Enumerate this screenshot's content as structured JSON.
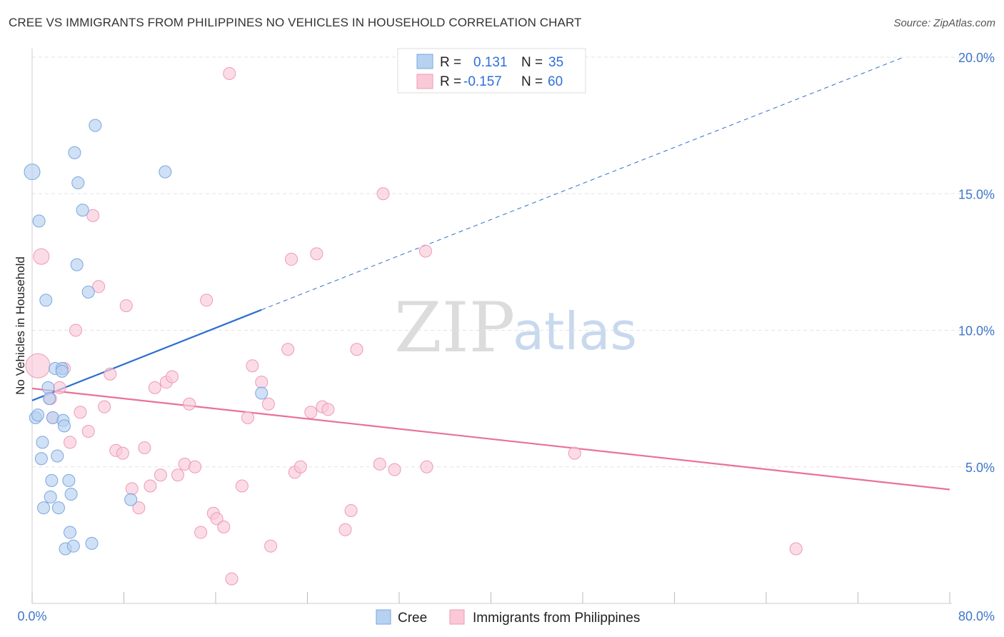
{
  "title": "CREE VS IMMIGRANTS FROM PHILIPPINES NO VEHICLES IN HOUSEHOLD CORRELATION CHART",
  "source": "Source: ZipAtlas.com",
  "watermark": {
    "part1": "ZIP",
    "part2": "atlas"
  },
  "legend": {
    "r_label": "R =",
    "n_label": "N =",
    "rows": [
      {
        "r": "0.131",
        "n": "35",
        "color": "#aecbef"
      },
      {
        "r": "-0.157",
        "n": "60",
        "color": "#f6bccd"
      }
    ]
  },
  "chart_data": {
    "type": "scatter",
    "title": "CREE VS IMMIGRANTS FROM PHILIPPINES NO VEHICLES IN HOUSEHOLD CORRELATION CHART",
    "xlabel": "",
    "ylabel": "No Vehicles in Household",
    "xlim": [
      0,
      80
    ],
    "ylim": [
      0,
      20
    ],
    "x_tick_labels": [
      "0.0%",
      "80.0%"
    ],
    "y_ticks": [
      5,
      10,
      15,
      20
    ],
    "y_tick_labels": [
      "5.0%",
      "10.0%",
      "15.0%",
      "20.0%"
    ],
    "grid": true,
    "legend_position": "top-center",
    "series": [
      {
        "name": "Cree",
        "color": "#7aa6e0",
        "fill": "#b7d1f1",
        "line_color": "#2d6fce",
        "trend": {
          "x0": 0,
          "y0": 7.43,
          "x1": 20,
          "y1": 10.75,
          "dashed_to_x": 76,
          "dashed_to_y": 20.0
        },
        "points": [
          [
            0.0,
            15.8
          ],
          [
            0.3,
            6.8
          ],
          [
            0.5,
            6.9
          ],
          [
            0.6,
            14.0
          ],
          [
            0.8,
            5.3
          ],
          [
            0.9,
            5.9
          ],
          [
            1.0,
            3.5
          ],
          [
            1.2,
            11.1
          ],
          [
            1.4,
            7.9
          ],
          [
            1.5,
            7.5
          ],
          [
            1.6,
            3.9
          ],
          [
            1.7,
            4.5
          ],
          [
            1.8,
            6.8
          ],
          [
            2.0,
            8.6
          ],
          [
            2.2,
            5.4
          ],
          [
            2.3,
            3.5
          ],
          [
            2.6,
            8.6
          ],
          [
            2.7,
            6.7
          ],
          [
            2.8,
            6.5
          ],
          [
            2.9,
            2.0
          ],
          [
            3.2,
            4.5
          ],
          [
            3.3,
            2.6
          ],
          [
            3.4,
            4.0
          ],
          [
            3.6,
            2.1
          ],
          [
            3.7,
            16.5
          ],
          [
            3.9,
            12.4
          ],
          [
            4.0,
            15.4
          ],
          [
            4.4,
            14.4
          ],
          [
            4.9,
            11.4
          ],
          [
            5.2,
            2.2
          ],
          [
            5.5,
            17.5
          ],
          [
            8.6,
            3.8
          ],
          [
            11.6,
            15.8
          ],
          [
            20.0,
            7.7
          ],
          [
            2.6,
            8.5
          ]
        ]
      },
      {
        "name": "Immigrants from Philippines",
        "color": "#ee9ab4",
        "fill": "#f9c9d8",
        "line_color": "#e8719a",
        "trend": {
          "x0": 0,
          "y0": 7.87,
          "x1": 80,
          "y1": 4.17
        },
        "points": [
          [
            0.5,
            8.7
          ],
          [
            0.8,
            12.7
          ],
          [
            1.6,
            7.5
          ],
          [
            1.8,
            6.8
          ],
          [
            2.4,
            7.9
          ],
          [
            2.8,
            8.6
          ],
          [
            3.3,
            5.9
          ],
          [
            3.8,
            10.0
          ],
          [
            4.2,
            7.0
          ],
          [
            4.9,
            6.3
          ],
          [
            5.3,
            14.2
          ],
          [
            5.8,
            11.6
          ],
          [
            6.3,
            7.2
          ],
          [
            6.8,
            8.4
          ],
          [
            7.3,
            5.6
          ],
          [
            7.9,
            5.5
          ],
          [
            8.2,
            10.9
          ],
          [
            8.7,
            4.2
          ],
          [
            9.3,
            3.5
          ],
          [
            9.8,
            5.7
          ],
          [
            10.3,
            4.3
          ],
          [
            10.7,
            7.9
          ],
          [
            11.2,
            4.7
          ],
          [
            11.7,
            8.1
          ],
          [
            12.2,
            8.3
          ],
          [
            12.7,
            4.7
          ],
          [
            13.3,
            5.1
          ],
          [
            13.7,
            7.3
          ],
          [
            14.2,
            5.0
          ],
          [
            14.7,
            2.6
          ],
          [
            15.2,
            11.1
          ],
          [
            15.8,
            3.3
          ],
          [
            16.1,
            3.1
          ],
          [
            16.7,
            2.8
          ],
          [
            17.2,
            19.4
          ],
          [
            17.4,
            0.9
          ],
          [
            18.3,
            4.3
          ],
          [
            18.8,
            6.8
          ],
          [
            19.2,
            8.7
          ],
          [
            20.0,
            8.1
          ],
          [
            20.6,
            7.3
          ],
          [
            20.8,
            2.1
          ],
          [
            22.3,
            9.3
          ],
          [
            22.6,
            12.6
          ],
          [
            22.9,
            4.8
          ],
          [
            23.4,
            5.0
          ],
          [
            24.3,
            7.0
          ],
          [
            24.8,
            12.8
          ],
          [
            25.3,
            7.2
          ],
          [
            25.8,
            7.1
          ],
          [
            27.3,
            2.7
          ],
          [
            27.8,
            3.4
          ],
          [
            28.3,
            9.3
          ],
          [
            30.3,
            5.1
          ],
          [
            30.6,
            15.0
          ],
          [
            31.6,
            4.9
          ],
          [
            34.3,
            12.9
          ],
          [
            34.4,
            5.0
          ],
          [
            47.3,
            5.5
          ],
          [
            66.6,
            2.0
          ]
        ]
      }
    ]
  }
}
